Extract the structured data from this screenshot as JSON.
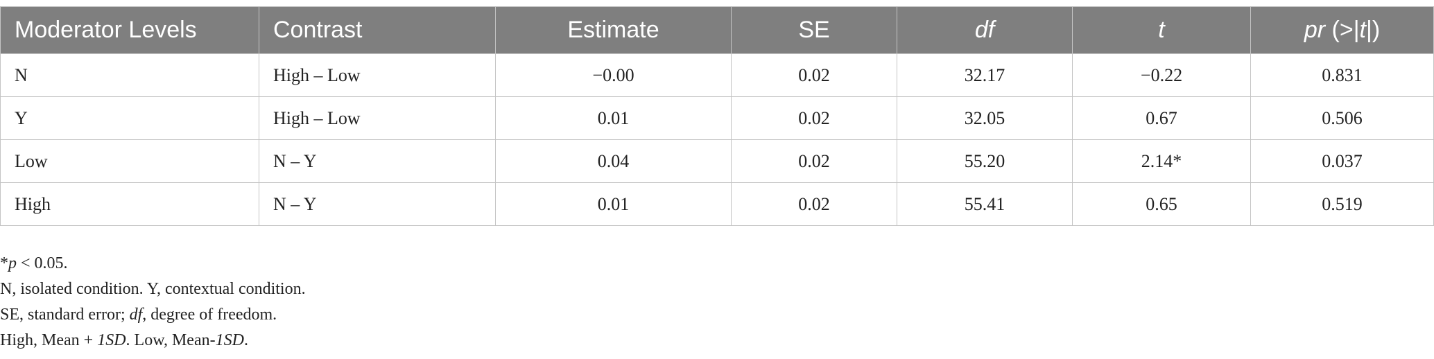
{
  "table": {
    "header": [
      [
        {
          "text": "Moderator Levels"
        }
      ],
      [
        {
          "text": "Contrast"
        }
      ],
      [
        {
          "text": "Estimate"
        }
      ],
      [
        {
          "text": "SE"
        }
      ],
      [
        {
          "text": "df",
          "italic": true
        }
      ],
      [
        {
          "text": "t",
          "italic": true
        }
      ],
      [
        {
          "text": "pr",
          "italic": true
        },
        {
          "text": " (>|"
        },
        {
          "text": "t",
          "italic": true
        },
        {
          "text": "|)"
        }
      ]
    ],
    "rows": [
      [
        "N",
        "High – Low",
        "−0.00",
        "0.02",
        "32.17",
        "−0.22",
        "0.831"
      ],
      [
        "Y",
        "High – Low",
        "0.01",
        "0.02",
        "32.05",
        "0.67",
        "0.506"
      ],
      [
        "Low",
        "N – Y",
        "0.04",
        "0.02",
        "55.20",
        "2.14*",
        "0.037"
      ],
      [
        "High",
        "N – Y",
        "0.01",
        "0.02",
        "55.41",
        "0.65",
        "0.519"
      ]
    ]
  },
  "notes": [
    [
      {
        "text": "*"
      },
      {
        "text": "p",
        "italic": true
      },
      {
        "text": " < 0.05."
      }
    ],
    [
      {
        "text": "N, isolated condition. Y, contextual condition."
      }
    ],
    [
      {
        "text": "SE, standard error; "
      },
      {
        "text": "df",
        "italic": true
      },
      {
        "text": ", degree of freedom."
      }
    ],
    [
      {
        "text": "High, Mean + "
      },
      {
        "text": "1SD",
        "italic": true
      },
      {
        "text": ". Low, Mean-"
      },
      {
        "text": "1SD",
        "italic": true
      },
      {
        "text": "."
      }
    ]
  ]
}
